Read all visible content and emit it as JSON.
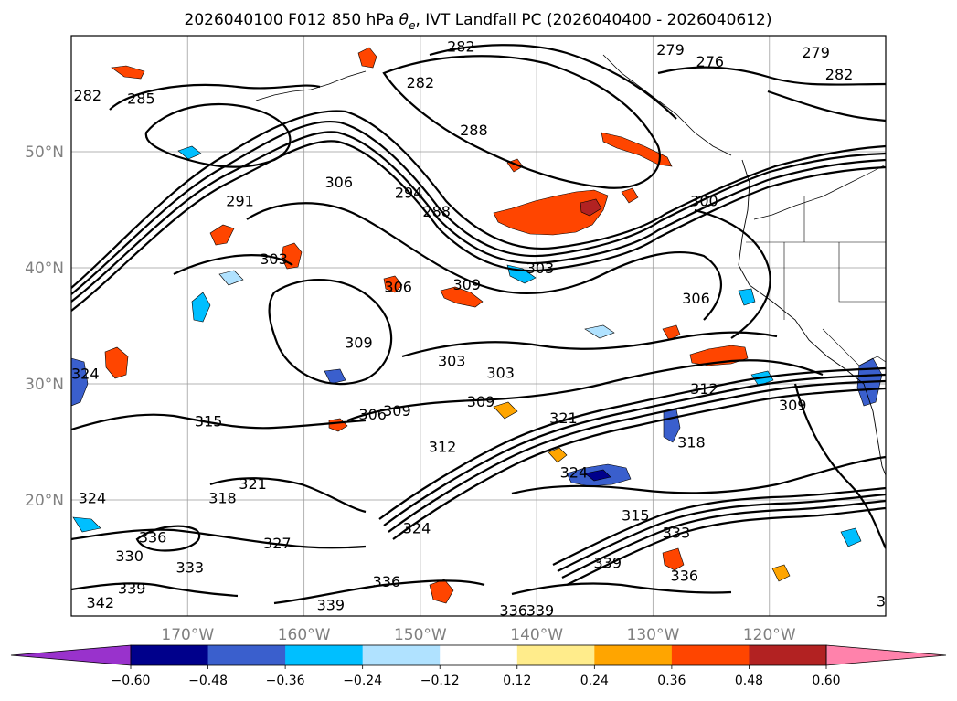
{
  "title_main": "2026040100 F012 850 hPa ",
  "title_symbol": "θ",
  "title_sub": "e",
  "title_rest": ", IVT Landfall PC (2026040400 - 2026040612)",
  "chart_data": {
    "type": "contour-map",
    "title": "2026040100 F012 850 hPa θe, IVT Landfall PC (2026040400 - 2026040612)",
    "lon_range": [
      -180,
      -110
    ],
    "lat_range": [
      10,
      60
    ],
    "x_ticks": [
      -170,
      -160,
      -150,
      -140,
      -130,
      -120
    ],
    "x_tick_labels": [
      "170°W",
      "160°W",
      "150°W",
      "140°W",
      "130°W",
      "120°W"
    ],
    "y_ticks": [
      20,
      30,
      40,
      50
    ],
    "y_tick_labels": [
      "20°N",
      "30°N",
      "40°N",
      "50°N"
    ],
    "colorbar": {
      "levels": [
        -0.6,
        -0.48,
        -0.36,
        -0.24,
        -0.12,
        0.12,
        0.24,
        0.36,
        0.48,
        0.6
      ],
      "tick_labels": [
        "−0.60",
        "−0.48",
        "−0.36",
        "−0.24",
        "−0.12",
        "0.12",
        "0.24",
        "0.36",
        "0.48",
        "0.60"
      ],
      "colors": [
        "#9932cc",
        "#00008b",
        "#3a5fcd",
        "#00bfff",
        "#b0e2ff",
        "#ffffff",
        "#ffec8b",
        "#ffa500",
        "#ff4500",
        "#b22222",
        "#ff82ab"
      ],
      "extend": "both"
    },
    "contour_labels": [
      {
        "text": "282",
        "lon": -146.5,
        "lat": 59.1
      },
      {
        "text": "279",
        "lon": -128.5,
        "lat": 58.8
      },
      {
        "text": "276",
        "lon": -125.1,
        "lat": 57.8
      },
      {
        "text": "279",
        "lon": -116.0,
        "lat": 58.6
      },
      {
        "text": "282",
        "lon": -114.0,
        "lat": 56.7
      },
      {
        "text": "282",
        "lon": -178.6,
        "lat": 54.9
      },
      {
        "text": "282",
        "lon": -150.0,
        "lat": 56.0
      },
      {
        "text": "285",
        "lon": -174.0,
        "lat": 54.6
      },
      {
        "text": "288",
        "lon": -145.4,
        "lat": 51.9
      },
      {
        "text": "306",
        "lon": -157.0,
        "lat": 47.4
      },
      {
        "text": "294",
        "lon": -151.0,
        "lat": 46.5
      },
      {
        "text": "288",
        "lon": -148.6,
        "lat": 44.9
      },
      {
        "text": "300",
        "lon": -125.6,
        "lat": 45.8
      },
      {
        "text": "291",
        "lon": -165.5,
        "lat": 45.8
      },
      {
        "text": "303",
        "lon": -162.6,
        "lat": 40.8
      },
      {
        "text": "306",
        "lon": -151.9,
        "lat": 38.4
      },
      {
        "text": "309",
        "lon": -146.0,
        "lat": 38.6
      },
      {
        "text": "303",
        "lon": -139.7,
        "lat": 40.0
      },
      {
        "text": "306",
        "lon": -126.3,
        "lat": 37.4
      },
      {
        "text": "309",
        "lon": -155.3,
        "lat": 33.6
      },
      {
        "text": "303",
        "lon": -147.3,
        "lat": 32.0
      },
      {
        "text": "303",
        "lon": -143.1,
        "lat": 31.0
      },
      {
        "text": "312",
        "lon": -125.6,
        "lat": 29.6
      },
      {
        "text": "309",
        "lon": -144.8,
        "lat": 28.5
      },
      {
        "text": "309",
        "lon": -118.0,
        "lat": 28.2
      },
      {
        "text": "306",
        "lon": -154.1,
        "lat": 27.4
      },
      {
        "text": "309",
        "lon": -152.0,
        "lat": 27.7
      },
      {
        "text": "321",
        "lon": -137.7,
        "lat": 27.1
      },
      {
        "text": "315",
        "lon": -168.2,
        "lat": 26.8
      },
      {
        "text": "312",
        "lon": -148.1,
        "lat": 24.6
      },
      {
        "text": "318",
        "lon": -126.7,
        "lat": 25.0
      },
      {
        "text": "324",
        "lon": -178.2,
        "lat": 20.2
      },
      {
        "text": "321",
        "lon": -164.4,
        "lat": 21.4
      },
      {
        "text": "318",
        "lon": -167.0,
        "lat": 20.2
      },
      {
        "text": "324",
        "lon": -136.8,
        "lat": 22.4
      },
      {
        "text": "324",
        "lon": -150.3,
        "lat": 17.6
      },
      {
        "text": "315",
        "lon": -131.5,
        "lat": 18.7
      },
      {
        "text": "333",
        "lon": -128.0,
        "lat": 17.2
      },
      {
        "text": "327",
        "lon": -162.3,
        "lat": 16.3
      },
      {
        "text": "336",
        "lon": -173.0,
        "lat": 16.8
      },
      {
        "text": "330",
        "lon": -175.0,
        "lat": 15.2
      },
      {
        "text": "333",
        "lon": -169.8,
        "lat": 14.2
      },
      {
        "text": "336",
        "lon": -152.9,
        "lat": 13.0
      },
      {
        "text": "339",
        "lon": -133.9,
        "lat": 14.6
      },
      {
        "text": "336",
        "lon": -127.3,
        "lat": 13.5
      },
      {
        "text": "339",
        "lon": -174.8,
        "lat": 12.4
      },
      {
        "text": "342",
        "lon": -177.5,
        "lat": 11.2
      },
      {
        "text": "339",
        "lon": -157.7,
        "lat": 11.0
      },
      {
        "text": "336",
        "lon": -142.0,
        "lat": 10.5
      },
      {
        "text": "339",
        "lon": -139.7,
        "lat": 10.5
      },
      {
        "text": "3",
        "lon": -110.4,
        "lat": 11.3
      },
      {
        "text": "324",
        "lon": -178.8,
        "lat": 30.9
      }
    ]
  }
}
